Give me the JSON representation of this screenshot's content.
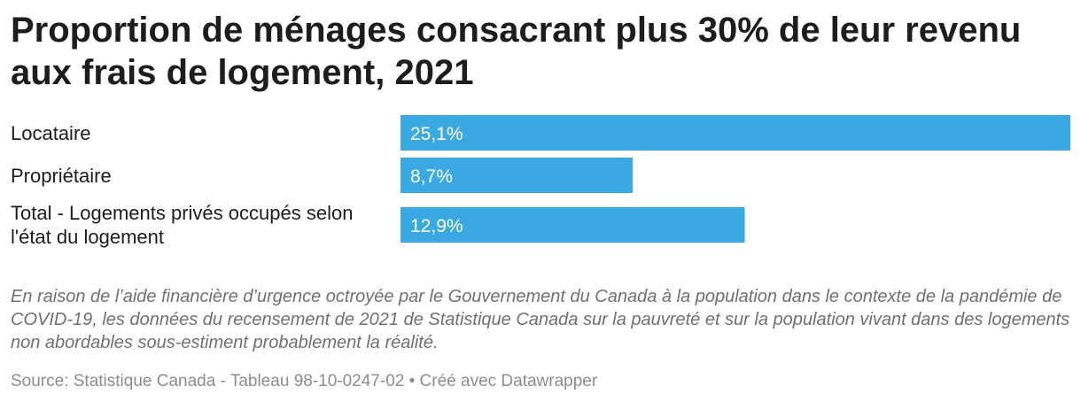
{
  "chart_data": {
    "type": "bar",
    "orientation": "horizontal",
    "title": "Proportion de ménages consacrant plus 30% de leur revenu aux frais de logement, 2021",
    "categories": [
      [
        "Locataire"
      ],
      [
        "Propriétaire"
      ],
      [
        "Total - Logements privés occupés selon",
        "l'état du logement"
      ]
    ],
    "values": [
      25.1,
      8.7,
      12.9
    ],
    "value_labels": [
      "25,1%",
      "8,7%",
      "12,9%"
    ],
    "xlim": [
      0,
      25.1
    ],
    "grid": false,
    "legend": "none",
    "bar_color": "#3aa8e1"
  },
  "notes": "En raison de l’aide financière d’urgence octroyée par le Gouvernement du Canada à la population dans le contexte de la pandémie de COVID-19, les données du recensement de 2021 de Statistique Canada sur la pauvreté et sur la population vivant dans des logements non abordables sous-estiment probablement la réalité.",
  "footer": "Source: Statistique Canada - Tableau 98-10-0247-02 • Créé avec Datawrapper"
}
